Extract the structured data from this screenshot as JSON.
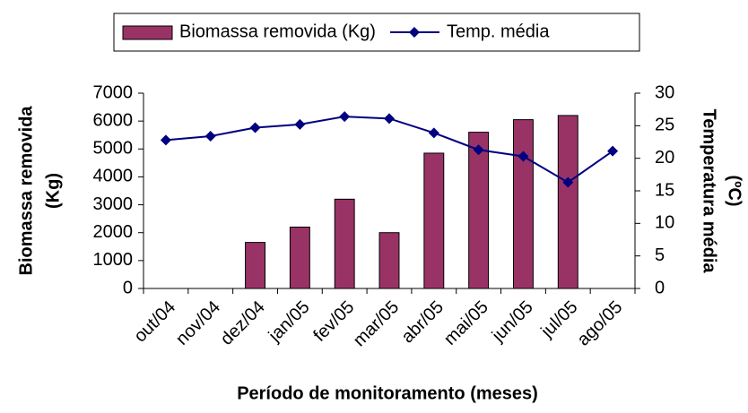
{
  "chart_data": {
    "type": "bar-line",
    "x_label": "Período de monitoramento (meses)",
    "y_label": [
      "Biomassa removida",
      "(Kg)"
    ],
    "y2_label": [
      "Temperatura média",
      "(ºC)"
    ],
    "categories": [
      "out/04",
      "nov/04",
      "dez/04",
      "jan/05",
      "fev/05",
      "mar/05",
      "abr/05",
      "mai/05",
      "jun/05",
      "jul/05",
      "ago/05"
    ],
    "series": [
      {
        "name": "Biomassa removida (Kg)",
        "type": "bar",
        "color": "#993366",
        "values": [
          null,
          null,
          1650,
          2200,
          3200,
          2000,
          4850,
          5600,
          6050,
          6200,
          null
        ]
      },
      {
        "name": "Temp. média",
        "type": "line",
        "axis": "y2",
        "color": "#000080",
        "values": [
          22.8,
          23.4,
          24.7,
          25.2,
          26.4,
          26.1,
          23.9,
          21.3,
          20.3,
          16.3,
          21.1
        ]
      }
    ],
    "ylim": [
      0,
      7000
    ],
    "yticks": [
      0,
      1000,
      2000,
      3000,
      4000,
      5000,
      6000,
      7000
    ],
    "y2lim": [
      0,
      30
    ],
    "y2ticks": [
      0,
      5,
      10,
      15,
      20,
      25,
      30
    ],
    "legend": "top",
    "grid": false
  }
}
